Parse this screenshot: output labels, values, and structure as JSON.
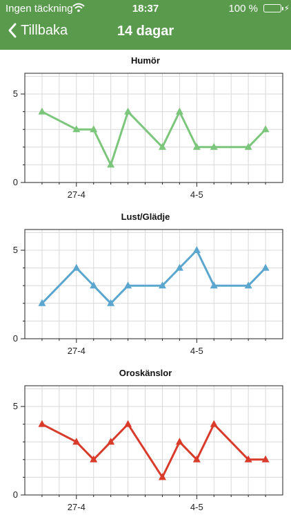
{
  "status": {
    "carrier": "Ingen täckning",
    "time": "18:37",
    "battery": "100 %"
  },
  "nav": {
    "back_label": "Tillbaka",
    "title": "14 dagar"
  },
  "chart_data": [
    {
      "type": "line",
      "title": "Humör",
      "color": "#7cc67c",
      "x": [
        1,
        3,
        4,
        5,
        6,
        8,
        9,
        10,
        11,
        13,
        14
      ],
      "values": [
        4,
        3,
        3,
        1,
        4,
        2,
        4,
        2,
        2,
        2,
        3
      ],
      "x_ticks": [
        3,
        10
      ],
      "x_tick_labels": [
        "27-4",
        "4-5"
      ],
      "ylim": [
        0,
        5
      ],
      "y_ticks": [
        0,
        5
      ],
      "grid": true
    },
    {
      "type": "line",
      "title": "Lust/Glädje",
      "color": "#5aa6cf",
      "x": [
        1,
        3,
        4,
        5,
        6,
        8,
        9,
        10,
        11,
        13,
        14
      ],
      "values": [
        2,
        4,
        3,
        2,
        3,
        3,
        4,
        5,
        3,
        3,
        4
      ],
      "x_ticks": [
        3,
        10
      ],
      "x_tick_labels": [
        "27-4",
        "4-5"
      ],
      "ylim": [
        0,
        5
      ],
      "y_ticks": [
        0,
        5
      ],
      "grid": true
    },
    {
      "type": "line",
      "title": "Oroskänslor",
      "color": "#d93b2b",
      "x": [
        1,
        3,
        4,
        5,
        6,
        8,
        9,
        10,
        11,
        13,
        14
      ],
      "values": [
        4,
        3,
        2,
        3,
        4,
        1,
        3,
        2,
        4,
        2,
        2
      ],
      "x_ticks": [
        3,
        10
      ],
      "x_tick_labels": [
        "27-4",
        "4-5"
      ],
      "ylim": [
        0,
        5
      ],
      "y_ticks": [
        0,
        5
      ],
      "grid": true
    }
  ]
}
